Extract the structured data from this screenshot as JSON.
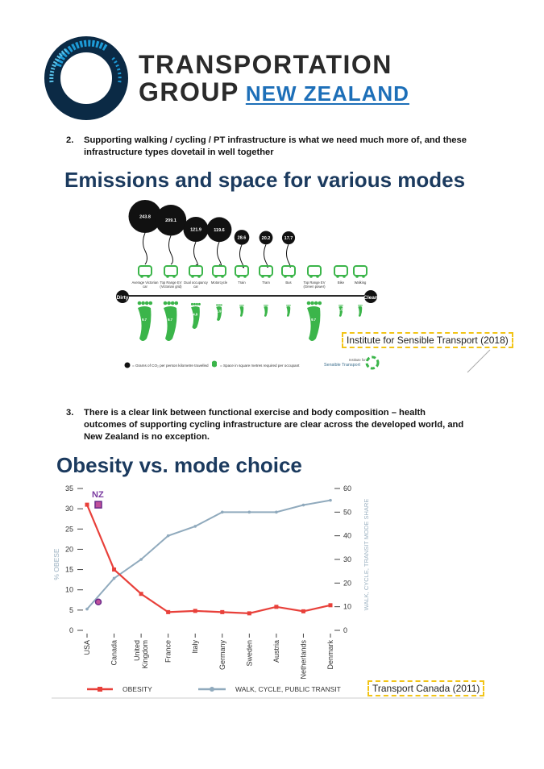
{
  "header": {
    "line1": "TRANSPORTATION",
    "line2": "GROUP",
    "line2_link": "NEW ZEALAND",
    "brand_dark": "#0b2a45",
    "brand_blue": "#1d6fb8"
  },
  "points": [
    {
      "number": "2.",
      "text": "Supporting walking / cycling / PT infrastructure is what we need much more of, and these infrastructure types dovetail in well together"
    },
    {
      "number": "3.",
      "text": "There is a clear link between functional exercise and body composition – health outcomes of supporting cycling infrastructure are clear across the developed world, and New Zealand is no exception."
    }
  ],
  "emissions": {
    "title": "Emissions and space for various modes",
    "modes": [
      {
        "label": "Average Victorian car",
        "co2": "243.8",
        "space": "9.7"
      },
      {
        "label": "Top Range EV (Victorian grid)",
        "co2": "209.1",
        "space": "9.7"
      },
      {
        "label": "Dual occupancy car",
        "co2": "121.9",
        "space": "4.9"
      },
      {
        "label": "Motorcycle",
        "co2": "119.6",
        "space": "1.9"
      },
      {
        "label": "Train",
        "co2": "28.6",
        "space": ""
      },
      {
        "label": "Tram",
        "co2": "20.2",
        "space": ""
      },
      {
        "label": "Bus",
        "co2": "17.7",
        "space": ""
      },
      {
        "label": "Top Range EV (Green power)",
        "co2": "",
        "space": "9.7"
      },
      {
        "label": "Bike",
        "co2": "",
        "space": "1.5"
      },
      {
        "label": "Walking",
        "co2": "",
        "space": ""
      }
    ],
    "dirty_label": "Dirty",
    "clean_label": "Clean",
    "legend_co2": "= Grams of CO₂ per person kilometre travelled",
    "legend_space": "= Space in square metres required per occupant",
    "source": "Institute for Sensible Transport (2018)",
    "logo_text_small": "Institute for",
    "logo_text": "Sensible Transport"
  },
  "obesity": {
    "title": "Obesity vs. mode choice",
    "left_axis_label": "% OBESE",
    "right_axis_label": "WALK, CYCLE, TRANSIT MODE SHARE",
    "nz_label": "NZ",
    "legend_obesity": "OBESITY",
    "legend_transit": "WALK, CYCLE, PUBLIC TRANSIT",
    "source": "Transport Canada (2011)"
  },
  "chart_data": {
    "type": "line",
    "title": "Obesity vs. mode choice",
    "categories": [
      "USA",
      "Canada",
      "United Kingdom",
      "France",
      "Italy",
      "Germany",
      "Sweden",
      "Austria",
      "Netherlands",
      "Denmark"
    ],
    "series": [
      {
        "name": "OBESITY",
        "axis": "left",
        "color": "#e8403a",
        "values": [
          31,
          15,
          9,
          4.5,
          4.8,
          4.5,
          4.2,
          5.8,
          4.7,
          6.2
        ]
      },
      {
        "name": "WALK, CYCLE, PUBLIC TRANSIT",
        "axis": "right",
        "color": "#90aabd",
        "values": [
          9,
          22,
          30,
          40,
          44,
          50,
          50,
          50,
          53,
          55
        ]
      }
    ],
    "nz_points": {
      "obesity": 31,
      "transit": 12
    },
    "ylabel": "% OBESE",
    "y2label": "WALK, CYCLE, TRANSIT MODE SHARE",
    "ylim": [
      0,
      35
    ],
    "y2lim": [
      0,
      60
    ],
    "yticks": [
      "0",
      "5",
      "10",
      "15",
      "20",
      "25",
      "30",
      "35"
    ],
    "y2ticks": [
      "0",
      "10",
      "20",
      "30",
      "40",
      "50",
      "60"
    ],
    "legend": "bottom"
  }
}
